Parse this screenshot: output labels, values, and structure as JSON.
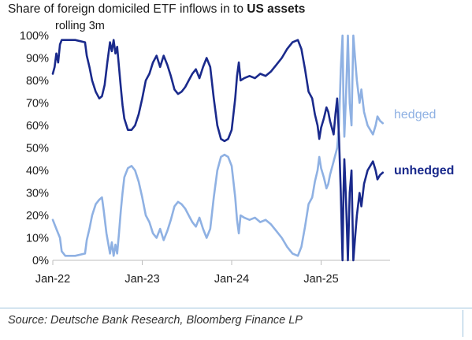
{
  "title": {
    "prefix": "Share of foreign domiciled ETF inflows in to ",
    "bold": "US assets"
  },
  "source": "Source: Deutsche Bank Research, Bloomberg Finance LP",
  "chart_data": {
    "type": "line",
    "subtitle": "rolling 3m",
    "ylim": [
      0,
      100
    ],
    "y_ticks": [
      "0%",
      "10%",
      "20%",
      "30%",
      "40%",
      "50%",
      "60%",
      "70%",
      "80%",
      "90%",
      "100%"
    ],
    "x_ticks": [
      "Jan-22",
      "Jan-23",
      "Jan-24",
      "Jan-25"
    ],
    "grid": false,
    "legend": "inline labels at right",
    "series": [
      {
        "name": "hedged",
        "color": "#8fb1e3",
        "points": [
          [
            2022.0,
            18
          ],
          [
            2022.04,
            14
          ],
          [
            2022.08,
            10
          ],
          [
            2022.1,
            4
          ],
          [
            2022.14,
            2
          ],
          [
            2022.25,
            2
          ],
          [
            2022.36,
            3
          ],
          [
            2022.38,
            9
          ],
          [
            2022.41,
            14
          ],
          [
            2022.44,
            20
          ],
          [
            2022.48,
            25
          ],
          [
            2022.52,
            27
          ],
          [
            2022.55,
            28
          ],
          [
            2022.57,
            22
          ],
          [
            2022.6,
            12
          ],
          [
            2022.64,
            3
          ],
          [
            2022.66,
            8
          ],
          [
            2022.68,
            2
          ],
          [
            2022.7,
            7
          ],
          [
            2022.72,
            3
          ],
          [
            2022.74,
            12
          ],
          [
            2022.76,
            22
          ],
          [
            2022.78,
            30
          ],
          [
            2022.8,
            37
          ],
          [
            2022.84,
            41
          ],
          [
            2022.88,
            42
          ],
          [
            2022.92,
            40
          ],
          [
            2022.96,
            35
          ],
          [
            2023.0,
            28
          ],
          [
            2023.04,
            20
          ],
          [
            2023.08,
            17
          ],
          [
            2023.12,
            12
          ],
          [
            2023.16,
            10
          ],
          [
            2023.2,
            14
          ],
          [
            2023.24,
            9
          ],
          [
            2023.28,
            13
          ],
          [
            2023.32,
            18
          ],
          [
            2023.36,
            24
          ],
          [
            2023.4,
            26
          ],
          [
            2023.44,
            25
          ],
          [
            2023.48,
            23
          ],
          [
            2023.52,
            20
          ],
          [
            2023.56,
            17
          ],
          [
            2023.6,
            15
          ],
          [
            2023.64,
            19
          ],
          [
            2023.68,
            14
          ],
          [
            2023.72,
            10
          ],
          [
            2023.76,
            14
          ],
          [
            2023.8,
            28
          ],
          [
            2023.84,
            40
          ],
          [
            2023.88,
            46
          ],
          [
            2023.92,
            47
          ],
          [
            2023.96,
            46
          ],
          [
            2024.0,
            42
          ],
          [
            2024.04,
            28
          ],
          [
            2024.06,
            18
          ],
          [
            2024.08,
            12
          ],
          [
            2024.1,
            20
          ],
          [
            2024.14,
            19
          ],
          [
            2024.2,
            18
          ],
          [
            2024.26,
            19
          ],
          [
            2024.32,
            17
          ],
          [
            2024.38,
            18
          ],
          [
            2024.44,
            16
          ],
          [
            2024.5,
            13
          ],
          [
            2024.56,
            10
          ],
          [
            2024.62,
            6
          ],
          [
            2024.68,
            3
          ],
          [
            2024.74,
            2
          ],
          [
            2024.78,
            6
          ],
          [
            2024.82,
            15
          ],
          [
            2024.86,
            25
          ],
          [
            2024.9,
            28
          ],
          [
            2024.93,
            35
          ],
          [
            2024.96,
            40
          ],
          [
            2024.98,
            46
          ],
          [
            2025.0,
            41
          ],
          [
            2025.03,
            37
          ],
          [
            2025.06,
            32
          ],
          [
            2025.08,
            34
          ],
          [
            2025.1,
            38
          ],
          [
            2025.14,
            44
          ],
          [
            2025.18,
            50
          ],
          [
            2025.2,
            60
          ],
          [
            2025.22,
            85
          ],
          [
            2025.24,
            100
          ],
          [
            2025.25,
            70
          ],
          [
            2025.26,
            55
          ],
          [
            2025.28,
            75
          ],
          [
            2025.3,
            100
          ],
          [
            2025.32,
            70
          ],
          [
            2025.34,
            60
          ],
          [
            2025.36,
            100
          ],
          [
            2025.38,
            90
          ],
          [
            2025.4,
            80
          ],
          [
            2025.43,
            70
          ],
          [
            2025.45,
            76
          ],
          [
            2025.48,
            66
          ],
          [
            2025.52,
            60
          ],
          [
            2025.55,
            58
          ],
          [
            2025.58,
            56
          ],
          [
            2025.61,
            60
          ],
          [
            2025.63,
            64
          ],
          [
            2025.66,
            62
          ],
          [
            2025.69,
            61
          ]
        ]
      },
      {
        "name": "unhedged",
        "color": "#1a2a8c",
        "points": [
          [
            2022.0,
            83
          ],
          [
            2022.02,
            86
          ],
          [
            2022.04,
            92
          ],
          [
            2022.06,
            88
          ],
          [
            2022.08,
            96
          ],
          [
            2022.1,
            98
          ],
          [
            2022.14,
            98
          ],
          [
            2022.25,
            98
          ],
          [
            2022.36,
            97
          ],
          [
            2022.38,
            91
          ],
          [
            2022.41,
            86
          ],
          [
            2022.44,
            80
          ],
          [
            2022.48,
            75
          ],
          [
            2022.52,
            72
          ],
          [
            2022.55,
            73
          ],
          [
            2022.58,
            78
          ],
          [
            2022.61,
            88
          ],
          [
            2022.64,
            97
          ],
          [
            2022.66,
            93
          ],
          [
            2022.68,
            98
          ],
          [
            2022.7,
            92
          ],
          [
            2022.72,
            95
          ],
          [
            2022.74,
            86
          ],
          [
            2022.76,
            77
          ],
          [
            2022.78,
            69
          ],
          [
            2022.8,
            63
          ],
          [
            2022.84,
            58
          ],
          [
            2022.88,
            58
          ],
          [
            2022.92,
            60
          ],
          [
            2022.96,
            65
          ],
          [
            2023.0,
            72
          ],
          [
            2023.04,
            80
          ],
          [
            2023.08,
            83
          ],
          [
            2023.12,
            88
          ],
          [
            2023.16,
            91
          ],
          [
            2023.2,
            86
          ],
          [
            2023.24,
            91
          ],
          [
            2023.28,
            87
          ],
          [
            2023.32,
            82
          ],
          [
            2023.36,
            76
          ],
          [
            2023.4,
            74
          ],
          [
            2023.44,
            75
          ],
          [
            2023.48,
            77
          ],
          [
            2023.52,
            80
          ],
          [
            2023.56,
            83
          ],
          [
            2023.6,
            85
          ],
          [
            2023.64,
            81
          ],
          [
            2023.68,
            86
          ],
          [
            2023.72,
            90
          ],
          [
            2023.76,
            86
          ],
          [
            2023.8,
            72
          ],
          [
            2023.84,
            60
          ],
          [
            2023.88,
            54
          ],
          [
            2023.92,
            53
          ],
          [
            2023.96,
            54
          ],
          [
            2024.0,
            58
          ],
          [
            2024.04,
            72
          ],
          [
            2024.06,
            82
          ],
          [
            2024.08,
            88
          ],
          [
            2024.1,
            80
          ],
          [
            2024.14,
            81
          ],
          [
            2024.2,
            82
          ],
          [
            2024.26,
            81
          ],
          [
            2024.32,
            83
          ],
          [
            2024.38,
            82
          ],
          [
            2024.44,
            84
          ],
          [
            2024.5,
            87
          ],
          [
            2024.56,
            90
          ],
          [
            2024.62,
            94
          ],
          [
            2024.68,
            97
          ],
          [
            2024.74,
            98
          ],
          [
            2024.78,
            94
          ],
          [
            2024.82,
            85
          ],
          [
            2024.86,
            75
          ],
          [
            2024.9,
            72
          ],
          [
            2024.93,
            65
          ],
          [
            2024.96,
            60
          ],
          [
            2024.98,
            54
          ],
          [
            2025.0,
            59
          ],
          [
            2025.03,
            63
          ],
          [
            2025.06,
            68
          ],
          [
            2025.08,
            66
          ],
          [
            2025.1,
            62
          ],
          [
            2025.14,
            56
          ],
          [
            2025.16,
            65
          ],
          [
            2025.18,
            72
          ],
          [
            2025.2,
            55
          ],
          [
            2025.22,
            30
          ],
          [
            2025.24,
            0
          ],
          [
            2025.25,
            30
          ],
          [
            2025.26,
            45
          ],
          [
            2025.28,
            25
          ],
          [
            2025.3,
            0
          ],
          [
            2025.32,
            30
          ],
          [
            2025.34,
            40
          ],
          [
            2025.36,
            0
          ],
          [
            2025.38,
            10
          ],
          [
            2025.4,
            20
          ],
          [
            2025.43,
            30
          ],
          [
            2025.45,
            24
          ],
          [
            2025.48,
            34
          ],
          [
            2025.52,
            40
          ],
          [
            2025.55,
            42
          ],
          [
            2025.58,
            44
          ],
          [
            2025.61,
            40
          ],
          [
            2025.63,
            36
          ],
          [
            2025.66,
            38
          ],
          [
            2025.69,
            39
          ]
        ]
      }
    ]
  }
}
